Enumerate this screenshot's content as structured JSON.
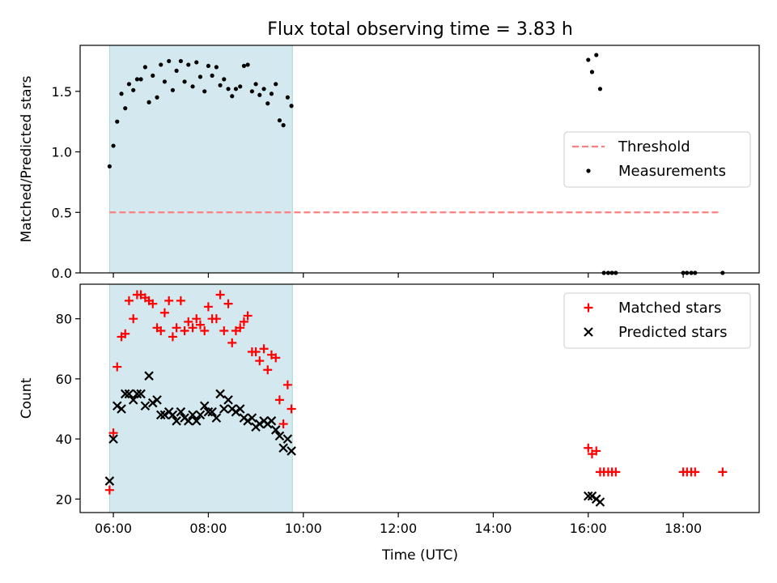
{
  "chart_data": {
    "title": "Flux total observing time = 3.83 h",
    "xlabel": "Time (UTC)",
    "x_unit": "hours UTC",
    "xlim": [
      5.3,
      19.6
    ],
    "x_ticks": [
      6,
      8,
      10,
      12,
      14,
      16,
      18
    ],
    "x_tick_labels": [
      "06:00",
      "08:00",
      "10:00",
      "12:00",
      "14:00",
      "16:00",
      "18:00"
    ],
    "shaded_interval": [
      5.92,
      9.77
    ],
    "shaded_color": "#d3e9ef",
    "panels": [
      {
        "type": "scatter",
        "ylabel": "Matched/Predicted stars",
        "ylim": [
          0,
          1.88
        ],
        "y_ticks": [
          0.0,
          0.5,
          1.0,
          1.5
        ],
        "y_tick_labels": [
          "0.0",
          "0.5",
          "1.0",
          "1.5"
        ],
        "legend_position": "center-right",
        "series": [
          {
            "name": "Threshold",
            "style": "dashed-line",
            "color": "#ff7f7f",
            "x": [
              5.92,
              18.78
            ],
            "y": [
              0.5,
              0.5
            ]
          },
          {
            "name": "Measurements",
            "style": "dot",
            "color": "#000000",
            "x": [
              5.92,
              6.0,
              6.08,
              6.17,
              6.25,
              6.33,
              6.42,
              6.5,
              6.58,
              6.67,
              6.75,
              6.83,
              6.92,
              7.0,
              7.08,
              7.17,
              7.25,
              7.33,
              7.42,
              7.5,
              7.58,
              7.67,
              7.75,
              7.83,
              7.92,
              8.0,
              8.08,
              8.17,
              8.25,
              8.33,
              8.42,
              8.5,
              8.58,
              8.67,
              8.75,
              8.83,
              8.92,
              9.0,
              9.08,
              9.17,
              9.25,
              9.33,
              9.42,
              9.5,
              9.58,
              9.67,
              9.75,
              16.0,
              16.08,
              16.17,
              16.25,
              16.33,
              16.42,
              16.5,
              16.58,
              18.0,
              18.08,
              18.17,
              18.25,
              18.83
            ],
            "y": [
              0.88,
              1.05,
              1.25,
              1.48,
              1.36,
              1.56,
              1.51,
              1.6,
              1.6,
              1.7,
              1.41,
              1.63,
              1.45,
              1.72,
              1.58,
              1.75,
              1.51,
              1.67,
              1.75,
              1.58,
              1.72,
              1.54,
              1.74,
              1.62,
              1.5,
              1.71,
              1.63,
              1.7,
              1.55,
              1.6,
              1.52,
              1.46,
              1.52,
              1.54,
              1.71,
              1.72,
              1.5,
              1.56,
              1.47,
              1.52,
              1.4,
              1.48,
              1.56,
              1.26,
              1.22,
              1.45,
              1.38,
              1.76,
              1.66,
              1.8,
              1.52,
              0.0,
              0.0,
              0.0,
              0.0,
              0.0,
              0.0,
              0.0,
              0.0,
              0.0
            ]
          }
        ]
      },
      {
        "type": "scatter",
        "ylabel": "Count",
        "ylim": [
          15.5,
          91.5
        ],
        "y_ticks": [
          20,
          40,
          60,
          80
        ],
        "y_tick_labels": [
          "20",
          "40",
          "60",
          "80"
        ],
        "legend_position": "top-right",
        "series": [
          {
            "name": "Matched stars",
            "style": "plus",
            "color": "#ff0000",
            "x": [
              5.92,
              6.0,
              6.08,
              6.17,
              6.25,
              6.33,
              6.42,
              6.5,
              6.58,
              6.67,
              6.75,
              6.83,
              6.92,
              7.0,
              7.08,
              7.17,
              7.25,
              7.33,
              7.42,
              7.5,
              7.58,
              7.67,
              7.75,
              7.83,
              7.92,
              8.0,
              8.08,
              8.17,
              8.25,
              8.33,
              8.42,
              8.5,
              8.58,
              8.67,
              8.75,
              8.83,
              8.92,
              9.0,
              9.08,
              9.17,
              9.25,
              9.33,
              9.42,
              9.5,
              9.58,
              9.67,
              9.75,
              16.0,
              16.08,
              16.17,
              16.25,
              16.33,
              16.42,
              16.5,
              16.58,
              18.0,
              18.08,
              18.17,
              18.25,
              18.83
            ],
            "y": [
              23,
              42,
              64,
              74,
              75,
              86,
              80,
              88,
              88,
              87,
              86,
              85,
              77,
              76,
              82,
              86,
              74,
              77,
              86,
              76,
              79,
              77,
              80,
              78,
              76,
              84,
              80,
              80,
              88,
              76,
              85,
              72,
              76,
              77,
              79,
              81,
              69,
              69,
              66,
              70,
              63,
              68,
              67,
              53,
              45,
              58,
              50,
              37,
              35,
              36,
              29,
              29,
              29,
              29,
              29,
              29,
              29,
              29,
              29,
              29
            ]
          },
          {
            "name": "Predicted stars",
            "style": "x",
            "color": "#000000",
            "x": [
              5.92,
              6.0,
              6.08,
              6.17,
              6.25,
              6.33,
              6.42,
              6.5,
              6.58,
              6.67,
              6.75,
              6.83,
              6.92,
              7.0,
              7.08,
              7.17,
              7.25,
              7.33,
              7.42,
              7.5,
              7.58,
              7.67,
              7.75,
              7.83,
              7.92,
              8.0,
              8.08,
              8.17,
              8.25,
              8.33,
              8.42,
              8.5,
              8.58,
              8.67,
              8.75,
              8.83,
              8.92,
              9.0,
              9.08,
              9.17,
              9.25,
              9.33,
              9.42,
              9.5,
              9.58,
              9.67,
              9.75,
              16.0,
              16.08,
              16.17,
              16.25
            ],
            "y": [
              26,
              40,
              51,
              50,
              55,
              55,
              53,
              55,
              55,
              51,
              61,
              52,
              53,
              48,
              48,
              49,
              48,
              46,
              49,
              47,
              46,
              48,
              46,
              48,
              51,
              49,
              49,
              47,
              55,
              50,
              53,
              50,
              49,
              50,
              47,
              46,
              47,
              44,
              45,
              46,
              45,
              46,
              43,
              41,
              37,
              40,
              36,
              21,
              21,
              20,
              19
            ]
          }
        ]
      }
    ]
  }
}
